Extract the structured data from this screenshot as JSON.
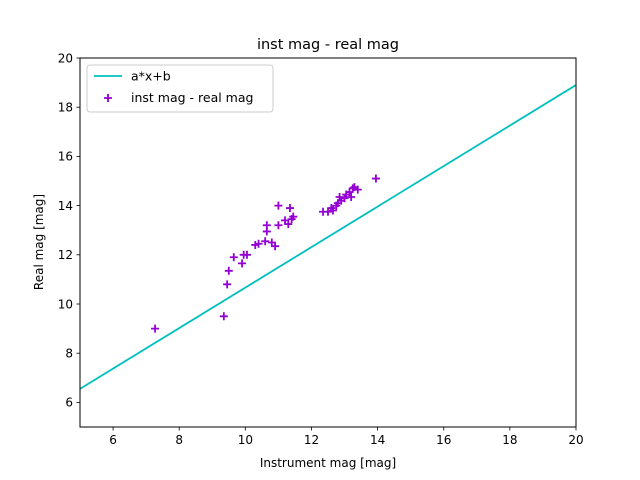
{
  "chart_data": {
    "type": "scatter",
    "title": "inst mag - real mag",
    "xlabel": "Instrument mag [mag]",
    "ylabel": "Real mag [mag]",
    "xlim": [
      5,
      20
    ],
    "ylim": [
      5,
      20
    ],
    "xticks": [
      "6",
      "8",
      "10",
      "12",
      "14",
      "16",
      "18",
      "20"
    ],
    "yticks": [
      "6",
      "8",
      "10",
      "12",
      "14",
      "16",
      "18",
      "20"
    ],
    "grid": false,
    "legend_position": "top-left",
    "fit_line": {
      "name": "a*x+b",
      "color": "#00bfbf",
      "x": [
        5,
        20
      ],
      "y": [
        6.55,
        18.9
      ]
    },
    "series": [
      {
        "name": "inst mag - real mag",
        "marker": "plus",
        "color": "#9400d3",
        "points": [
          [
            7.27,
            9.0
          ],
          [
            9.35,
            9.5
          ],
          [
            9.45,
            10.8
          ],
          [
            9.5,
            11.35
          ],
          [
            9.65,
            11.9
          ],
          [
            9.9,
            11.65
          ],
          [
            9.95,
            12.0
          ],
          [
            10.05,
            12.0
          ],
          [
            10.3,
            12.4
          ],
          [
            10.4,
            12.45
          ],
          [
            10.6,
            12.55
          ],
          [
            10.65,
            12.95
          ],
          [
            10.65,
            13.2
          ],
          [
            10.8,
            12.5
          ],
          [
            10.9,
            12.35
          ],
          [
            11.0,
            13.2
          ],
          [
            11.0,
            14.0
          ],
          [
            11.2,
            13.4
          ],
          [
            11.3,
            13.25
          ],
          [
            11.35,
            13.9
          ],
          [
            11.4,
            13.45
          ],
          [
            11.45,
            13.55
          ],
          [
            12.35,
            13.75
          ],
          [
            12.5,
            13.75
          ],
          [
            12.6,
            13.9
          ],
          [
            12.65,
            13.8
          ],
          [
            12.75,
            14.0
          ],
          [
            12.8,
            14.1
          ],
          [
            12.85,
            14.35
          ],
          [
            12.9,
            14.2
          ],
          [
            13.0,
            14.3
          ],
          [
            13.05,
            14.45
          ],
          [
            13.15,
            14.55
          ],
          [
            13.2,
            14.35
          ],
          [
            13.25,
            14.7
          ],
          [
            13.3,
            14.75
          ],
          [
            13.4,
            14.65
          ],
          [
            13.95,
            15.1
          ]
        ]
      }
    ]
  }
}
